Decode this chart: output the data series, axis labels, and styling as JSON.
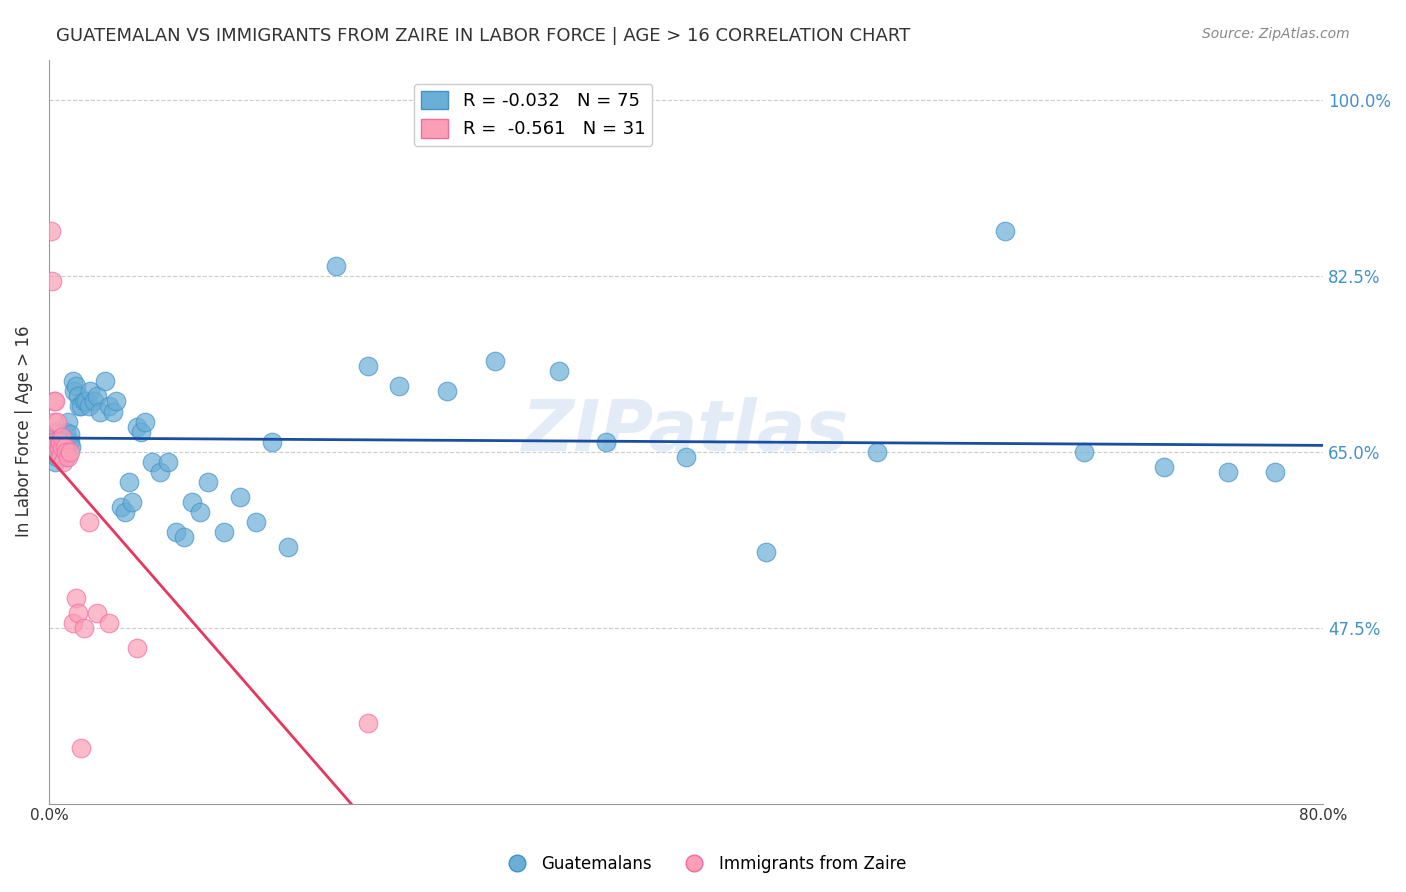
{
  "title": "GUATEMALAN VS IMMIGRANTS FROM ZAIRE IN LABOR FORCE | AGE > 16 CORRELATION CHART",
  "source": "Source: ZipAtlas.com",
  "xlabel": "",
  "ylabel": "In Labor Force | Age > 16",
  "xlim": [
    0.0,
    0.8
  ],
  "ylim": [
    0.3,
    1.04
  ],
  "xticks": [
    0.0,
    0.1,
    0.2,
    0.3,
    0.4,
    0.5,
    0.6,
    0.7,
    0.8
  ],
  "xticklabels": [
    "0.0%",
    "",
    "",
    "",
    "",
    "",
    "",
    "",
    "80.0%"
  ],
  "ytick_positions": [
    0.475,
    0.65,
    0.825,
    1.0
  ],
  "yticklabels": [
    "47.5%",
    "65.0%",
    "82.5%",
    "100.0%"
  ],
  "grid_color": "#cccccc",
  "background_color": "#ffffff",
  "blue_color": "#6baed6",
  "blue_edge_color": "#4292c6",
  "pink_color": "#fa9fb5",
  "pink_edge_color": "#f768a1",
  "line_blue_color": "#1a4fa0",
  "line_pink_color": "#e8365d",
  "line_pink_dashed_color": "#aaaaaa",
  "legend_blue_label": "R = -0.032   N = 75",
  "legend_pink_label": "R =  -0.561   N = 31",
  "legend_label_blue": "Guatemalans",
  "legend_label_pink": "Immigrants from Zaire",
  "watermark": "ZIPatlas",
  "blue_R": -0.032,
  "blue_N": 75,
  "pink_R": -0.561,
  "pink_N": 31,
  "blue_x": [
    0.002,
    0.003,
    0.004,
    0.004,
    0.005,
    0.005,
    0.006,
    0.006,
    0.007,
    0.007,
    0.008,
    0.008,
    0.008,
    0.009,
    0.009,
    0.01,
    0.01,
    0.011,
    0.011,
    0.012,
    0.013,
    0.013,
    0.014,
    0.015,
    0.016,
    0.017,
    0.018,
    0.019,
    0.02,
    0.022,
    0.023,
    0.025,
    0.026,
    0.028,
    0.03,
    0.032,
    0.035,
    0.038,
    0.04,
    0.042,
    0.045,
    0.048,
    0.05,
    0.052,
    0.055,
    0.058,
    0.06,
    0.065,
    0.07,
    0.075,
    0.08,
    0.085,
    0.09,
    0.095,
    0.1,
    0.11,
    0.12,
    0.13,
    0.14,
    0.15,
    0.18,
    0.2,
    0.22,
    0.25,
    0.28,
    0.32,
    0.35,
    0.4,
    0.45,
    0.52,
    0.6,
    0.65,
    0.7,
    0.74,
    0.77
  ],
  "blue_y": [
    0.65,
    0.66,
    0.64,
    0.67,
    0.655,
    0.645,
    0.648,
    0.652,
    0.663,
    0.658,
    0.66,
    0.65,
    0.665,
    0.655,
    0.648,
    0.65,
    0.66,
    0.67,
    0.645,
    0.68,
    0.66,
    0.668,
    0.655,
    0.72,
    0.71,
    0.715,
    0.705,
    0.695,
    0.695,
    0.7,
    0.7,
    0.695,
    0.71,
    0.7,
    0.705,
    0.69,
    0.72,
    0.695,
    0.69,
    0.7,
    0.595,
    0.59,
    0.62,
    0.6,
    0.675,
    0.67,
    0.68,
    0.64,
    0.63,
    0.64,
    0.57,
    0.565,
    0.6,
    0.59,
    0.62,
    0.57,
    0.605,
    0.58,
    0.66,
    0.555,
    0.835,
    0.735,
    0.715,
    0.71,
    0.74,
    0.73,
    0.66,
    0.645,
    0.55,
    0.65,
    0.87,
    0.65,
    0.635,
    0.63,
    0.63
  ],
  "pink_x": [
    0.001,
    0.002,
    0.002,
    0.003,
    0.003,
    0.003,
    0.004,
    0.004,
    0.005,
    0.005,
    0.006,
    0.006,
    0.007,
    0.007,
    0.008,
    0.008,
    0.009,
    0.01,
    0.011,
    0.012,
    0.013,
    0.015,
    0.017,
    0.018,
    0.02,
    0.022,
    0.025,
    0.03,
    0.038,
    0.055,
    0.2
  ],
  "pink_y": [
    0.87,
    0.66,
    0.82,
    0.66,
    0.7,
    0.68,
    0.66,
    0.7,
    0.68,
    0.65,
    0.66,
    0.655,
    0.66,
    0.645,
    0.655,
    0.665,
    0.64,
    0.655,
    0.65,
    0.645,
    0.65,
    0.48,
    0.505,
    0.49,
    0.355,
    0.475,
    0.58,
    0.49,
    0.48,
    0.455,
    0.38
  ]
}
